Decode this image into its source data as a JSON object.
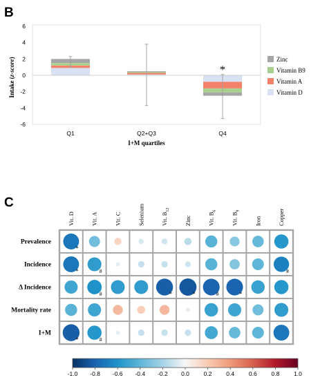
{
  "panel_b": {
    "letter": "B",
    "ylabel_main": "Intake (",
    "ylabel_italic": "z-score",
    "ylabel_end": ")",
    "xlabel": "I+M quartiles",
    "significance_mark": "*"
  },
  "panel_c": {
    "letter": "C"
  },
  "colors": {
    "zinc": "#a6a6a6",
    "vitamin_b9": "#a9d08e",
    "vitamin_a": "#f4826a",
    "vitamin_d": "#d9e2f3",
    "errorbar": "#9e9e9e",
    "grid_border": "#a6a6a6"
  },
  "chart_data": [
    {
      "type": "bar",
      "stacked": true,
      "categories": [
        "Q1",
        "Q2+Q3",
        "Q4"
      ],
      "ylim": [
        -6,
        6
      ],
      "yticks": [
        -6,
        -4,
        -2,
        0,
        2,
        4,
        6
      ],
      "xlabel": "I+M quartiles",
      "ylabel": "Intake (z-score)",
      "legend_position": "right",
      "series": [
        {
          "name": "Zinc",
          "values": [
            0.5,
            0.1,
            -0.4
          ]
        },
        {
          "name": "Vitamin B9",
          "values": [
            0.3,
            0.1,
            -0.5
          ]
        },
        {
          "name": "Vitamin A",
          "values": [
            0.3,
            0.2,
            -0.8
          ]
        },
        {
          "name": "Vitamin D",
          "values": [
            0.9,
            0.1,
            -0.8
          ]
        }
      ],
      "legend_order": [
        "Zinc",
        "Vitamin B9",
        "Vitamin A",
        "Vitamin D"
      ],
      "error_bars": [
        {
          "category": "Q1",
          "low": 1.0,
          "high": 2.3
        },
        {
          "category": "Q2+Q3",
          "low": -3.7,
          "high": 3.8
        },
        {
          "category": "Q4",
          "low": -5.3,
          "high": 0.1
        }
      ],
      "annotations": [
        {
          "category": "Q4",
          "text": "*"
        }
      ]
    },
    {
      "type": "heatmap",
      "rows": [
        "Prevalence",
        "Incidence",
        "Δ Incidence",
        "Mortality rate",
        "I+M"
      ],
      "columns": [
        {
          "base": "Vit. D",
          "sub": ""
        },
        {
          "base": "Vit. A",
          "sub": ""
        },
        {
          "base": "Vit. C",
          "sub": ""
        },
        {
          "base": "Selenium",
          "sub": ""
        },
        {
          "base": "Vit. B",
          "sub": "12"
        },
        {
          "base": "Zinc",
          "sub": ""
        },
        {
          "base": "Vit. B",
          "sub": "6"
        },
        {
          "base": "Vit. B",
          "sub": "9"
        },
        {
          "base": "Iron",
          "sub": ""
        },
        {
          "base": "Copper",
          "sub": ""
        }
      ],
      "values": [
        [
          -0.72,
          -0.35,
          0.15,
          -0.08,
          -0.1,
          -0.15,
          -0.42,
          -0.28,
          -0.38,
          -0.58
        ],
        [
          -0.72,
          -0.55,
          -0.05,
          -0.12,
          -0.12,
          -0.1,
          -0.42,
          -0.3,
          -0.4,
          -0.68
        ],
        [
          -0.5,
          -0.6,
          -0.55,
          -0.55,
          -0.82,
          -0.85,
          -0.8,
          -0.8,
          -0.52,
          -0.58
        ],
        [
          -0.42,
          -0.5,
          0.28,
          0.18,
          0.28,
          -0.05,
          -0.52,
          -0.5,
          -0.35,
          -0.55
        ],
        [
          -0.82,
          -0.58,
          -0.05,
          -0.12,
          -0.12,
          -0.12,
          -0.48,
          -0.38,
          -0.4,
          -0.72
        ]
      ],
      "marks": [
        {
          "row": 0,
          "col": 0,
          "text": "*"
        },
        {
          "row": 1,
          "col": 0,
          "text": "*"
        },
        {
          "row": 1,
          "col": 1,
          "text": "#"
        },
        {
          "row": 1,
          "col": 9,
          "text": "#"
        },
        {
          "row": 2,
          "col": 1,
          "text": "#"
        },
        {
          "row": 2,
          "col": 4,
          "text": "*"
        },
        {
          "row": 2,
          "col": 5,
          "text": "*"
        },
        {
          "row": 2,
          "col": 6,
          "text": "#"
        },
        {
          "row": 2,
          "col": 7,
          "text": "*"
        },
        {
          "row": 4,
          "col": 0,
          "text": "*"
        },
        {
          "row": 4,
          "col": 1,
          "text": "#"
        }
      ],
      "colorbar": {
        "min": -1.0,
        "max": 1.0,
        "ticks": [
          "-1.0",
          "-0.8",
          "-0.6",
          "-0.4",
          "-0.2",
          "0.0",
          "0.2",
          "0.4",
          "0.6",
          "0.8",
          "1.0"
        ]
      }
    }
  ]
}
